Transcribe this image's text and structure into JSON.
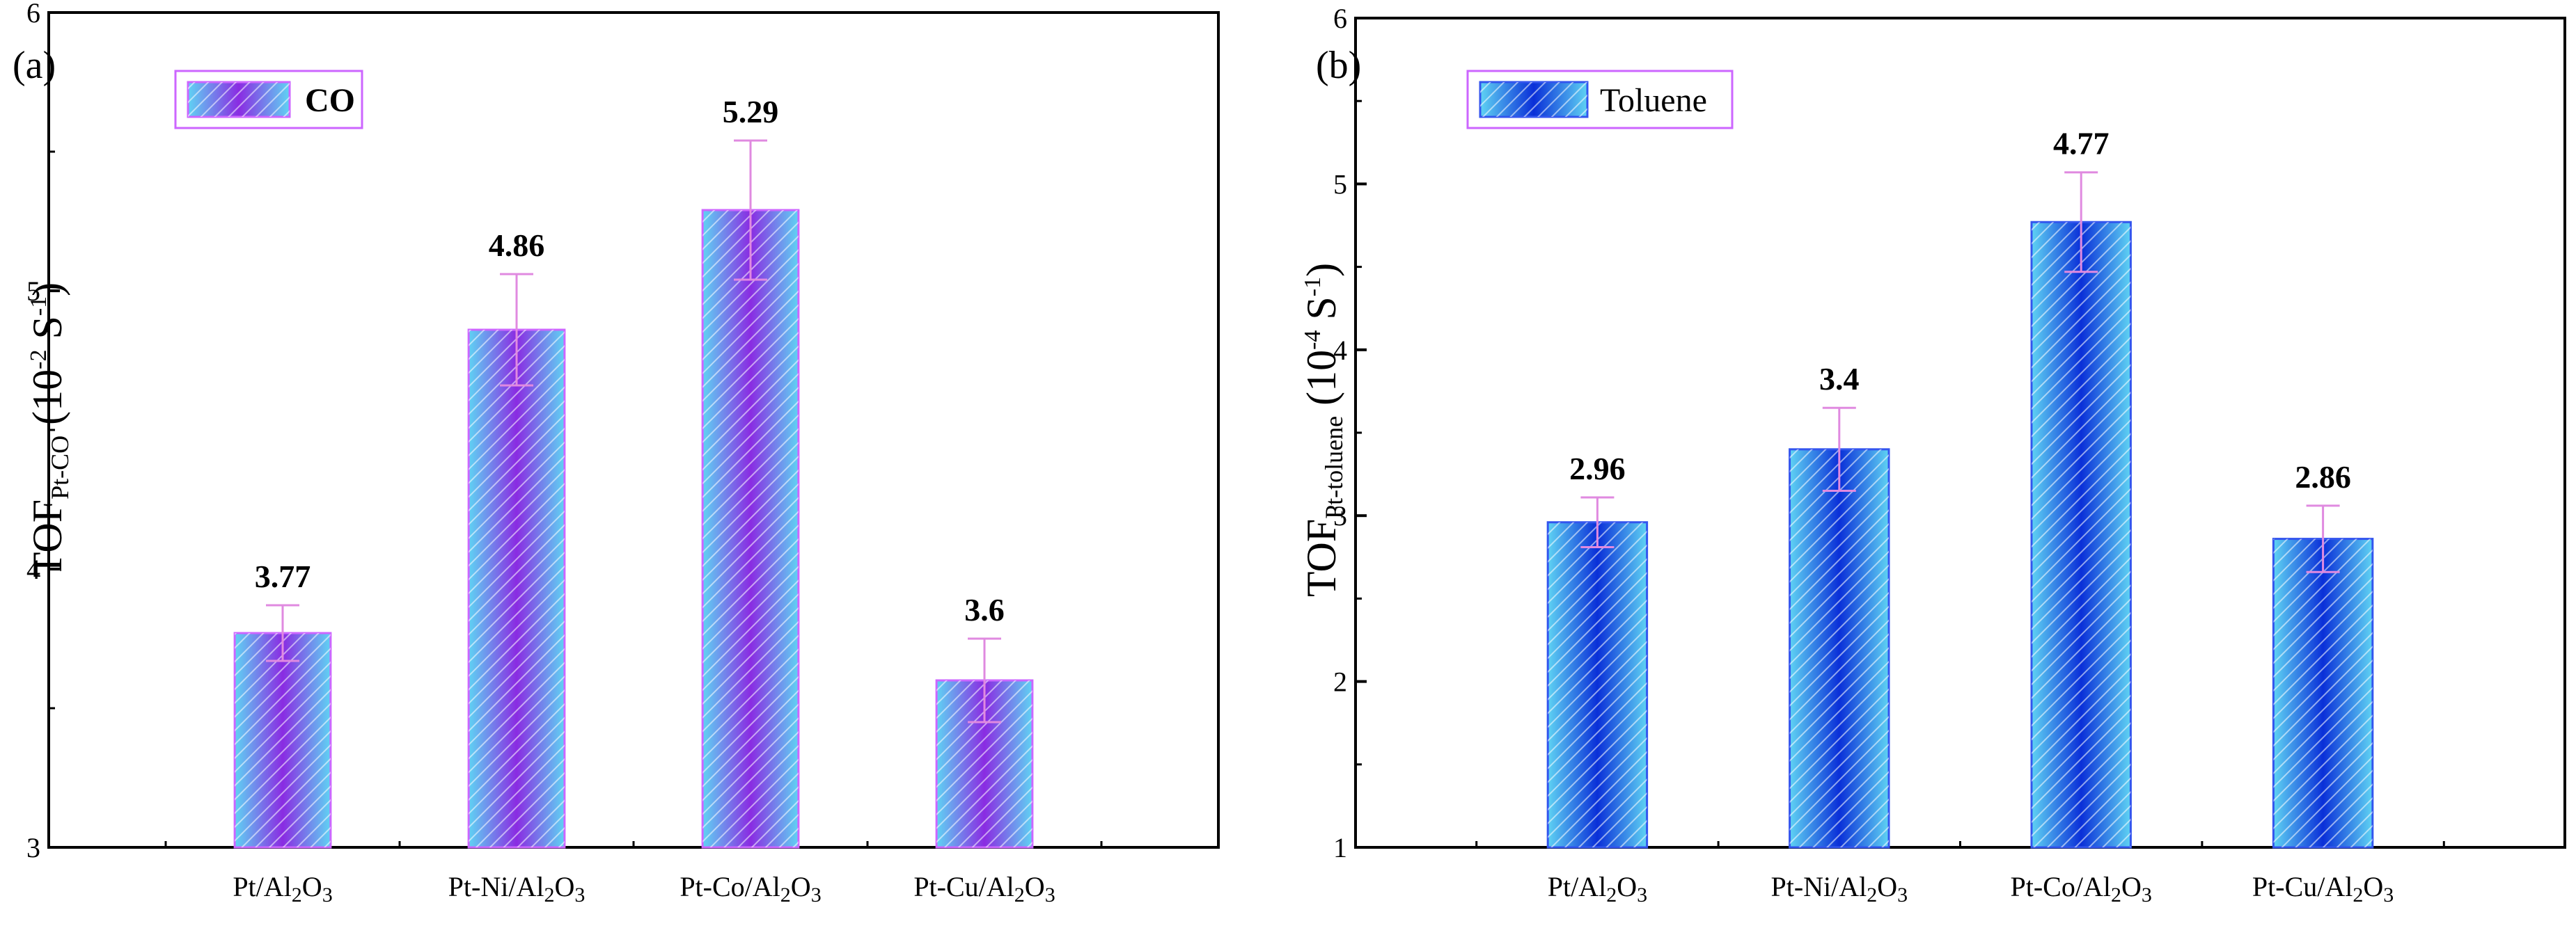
{
  "chart_data": [
    {
      "type": "bar",
      "panel_label": "(a)",
      "categories": [
        "Pt/Al2O3",
        "Pt-Ni/Al2O3",
        "Pt-Co/Al2O3",
        "Pt-Cu/Al2O3"
      ],
      "values": [
        3.77,
        4.86,
        5.29,
        3.6
      ],
      "value_labels": [
        "3.77",
        "4.86",
        "5.29",
        "3.6"
      ],
      "errors": [
        0.1,
        0.2,
        0.25,
        0.15
      ],
      "ylim": [
        3,
        6
      ],
      "y_ticks": [
        3,
        4,
        5,
        6
      ],
      "y_tick_labels": [
        "3",
        "4",
        "5",
        "6"
      ],
      "ylabel": {
        "main": "TOF",
        "sub": "Pt-CO",
        "unit_open": " (10",
        "sup": "-2",
        "unit_mid": " S",
        "sup2": "-1",
        "unit_close": ")"
      },
      "legend": {
        "label": "CO",
        "position": "top-left"
      },
      "colors": {
        "edge": "#cc66ff",
        "center": "#8a2be2",
        "side": "#5fd3f3",
        "error": "#e08ae0"
      }
    },
    {
      "type": "bar",
      "panel_label": "(b)",
      "categories": [
        "Pt/Al2O3",
        "Pt-Ni/Al2O3",
        "Pt-Co/Al2O3",
        "Pt-Cu/Al2O3"
      ],
      "values": [
        2.96,
        3.4,
        4.77,
        2.86
      ],
      "value_labels": [
        "2.96",
        "3.4",
        "4.77",
        "2.86"
      ],
      "errors": [
        0.15,
        0.25,
        0.3,
        0.2
      ],
      "ylim": [
        1,
        6
      ],
      "y_ticks": [
        1,
        2,
        3,
        4,
        5,
        6
      ],
      "y_tick_labels": [
        "1",
        "2",
        "3",
        "4",
        "5",
        "6"
      ],
      "ylabel": {
        "main": "TOF",
        "sub": "Pt-toluene",
        "unit_open": " (10",
        "sup": "-4",
        "unit_mid": " S",
        "sup2": "-1",
        "unit_close": ")"
      },
      "legend": {
        "label": "Toluene",
        "position": "top-left"
      },
      "colors": {
        "edge": "#3355ee",
        "center": "#0a2fd8",
        "side": "#5fd3f3",
        "error": "#e08ae0"
      }
    }
  ]
}
